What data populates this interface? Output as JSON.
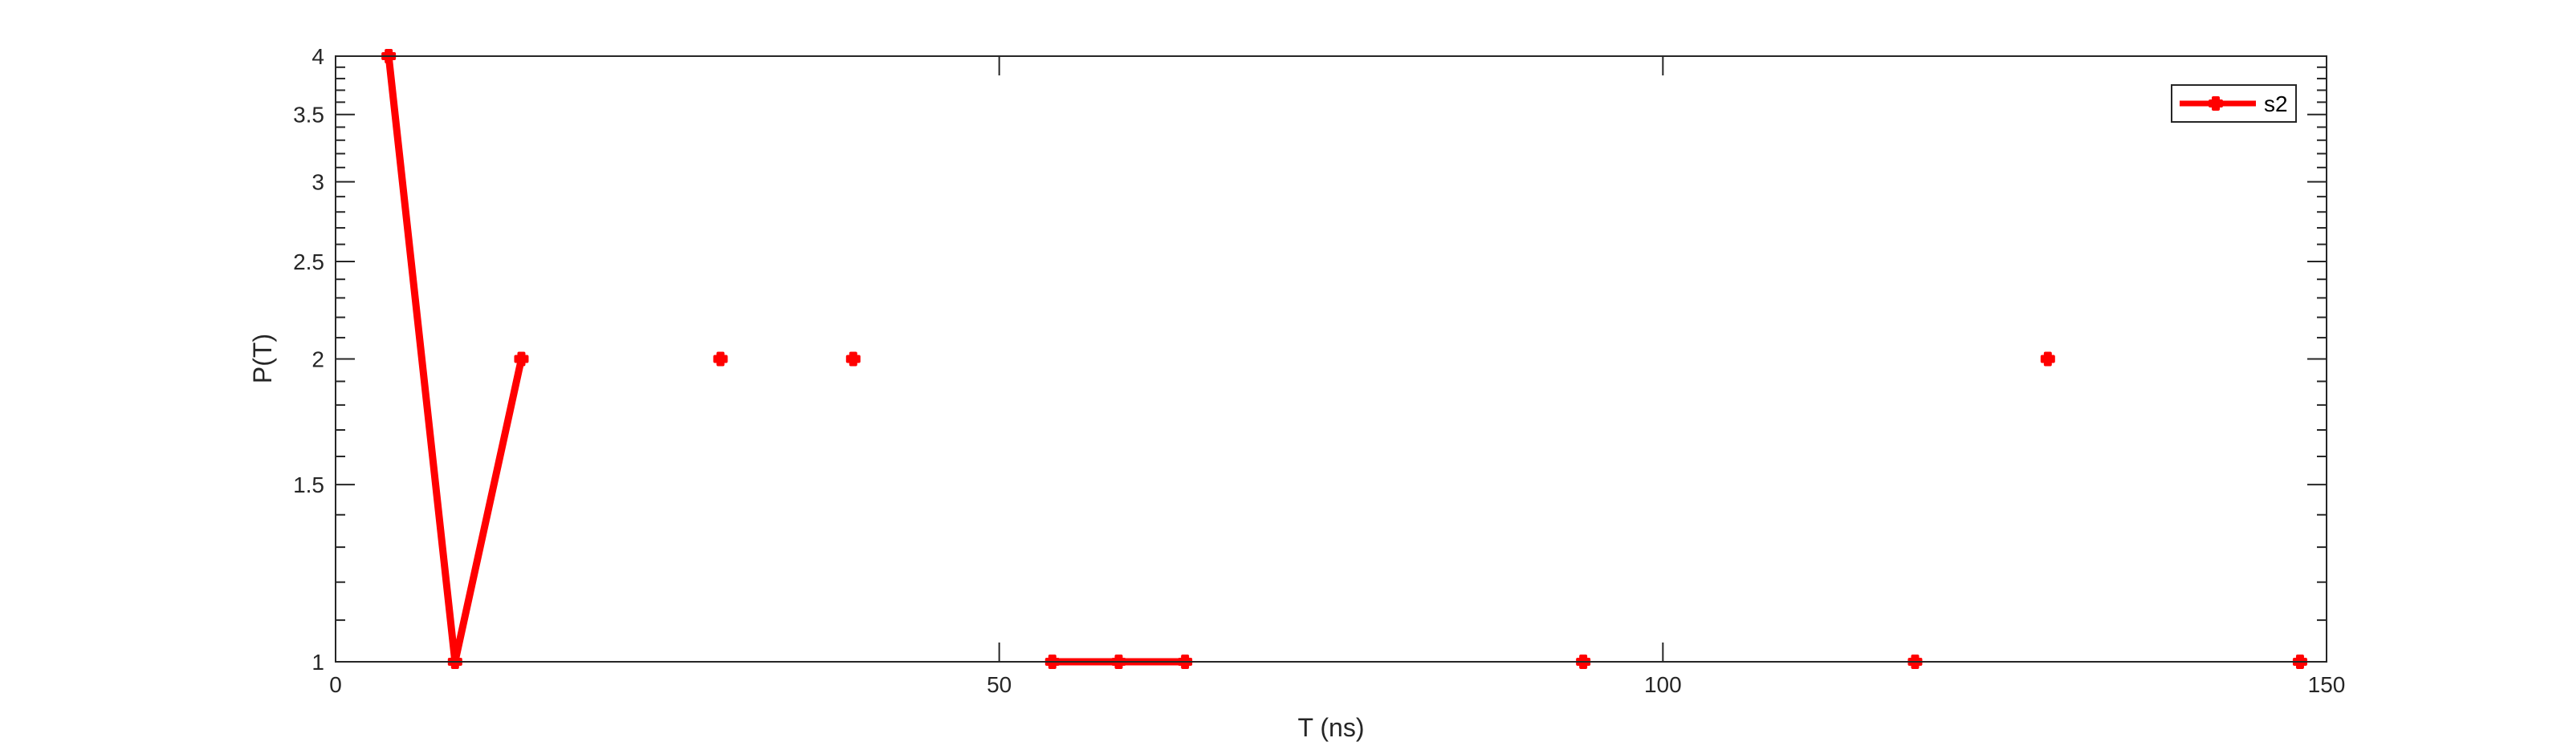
{
  "chart_data": {
    "type": "line",
    "xlabel": "T (ns)",
    "ylabel": "P(T)",
    "xlim": [
      0,
      150
    ],
    "ylim": [
      1,
      4
    ],
    "yscale": "log",
    "grid": false,
    "legend_placement": "top-right",
    "x_ticks": [
      0,
      50,
      100,
      150
    ],
    "x_tick_labels": [
      "0",
      "50",
      "100",
      "150"
    ],
    "y_ticks": [
      1,
      1.5,
      2,
      2.5,
      3,
      3.5,
      4
    ],
    "y_tick_labels": [
      "1",
      "1.5",
      "2",
      "2.5",
      "3",
      "3.5",
      "4"
    ],
    "series": [
      {
        "name": "s2",
        "color": "#ff0000",
        "marker": "plus",
        "segments": [
          [
            {
              "x": 4,
              "y": 4
            },
            {
              "x": 9,
              "y": 1
            },
            {
              "x": 14,
              "y": 2
            }
          ],
          [
            {
              "x": 29,
              "y": 2
            }
          ],
          [
            {
              "x": 39,
              "y": 2
            }
          ],
          [
            {
              "x": 54,
              "y": 1
            },
            {
              "x": 59,
              "y": 1
            },
            {
              "x": 64,
              "y": 1
            }
          ],
          [
            {
              "x": 94,
              "y": 1
            }
          ],
          [
            {
              "x": 119,
              "y": 1
            }
          ],
          [
            {
              "x": 129,
              "y": 2
            }
          ],
          [
            {
              "x": 148,
              "y": 1
            }
          ]
        ]
      }
    ]
  }
}
